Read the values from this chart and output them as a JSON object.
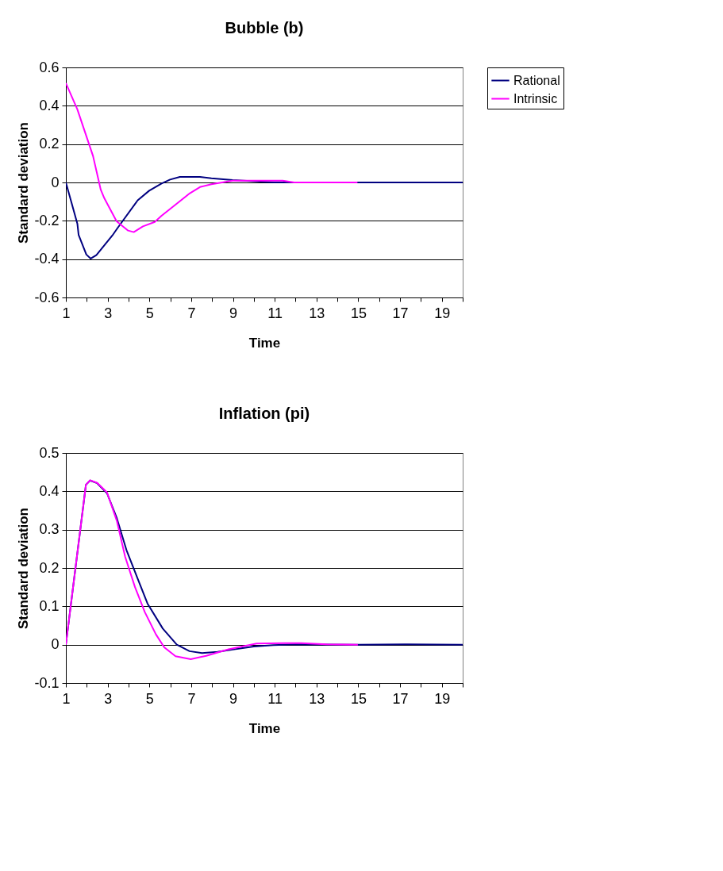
{
  "chart_data": [
    {
      "type": "line",
      "title": "Bubble (b)",
      "xlabel": "Time",
      "ylabel": "Standard deviation",
      "xlim": [
        1,
        20
      ],
      "ylim": [
        -0.6,
        0.6
      ],
      "xticks": [
        1,
        {
          "value": 2,
          "label": null
        },
        3,
        {
          "value": 4,
          "label": null
        },
        5,
        {
          "value": 6,
          "label": null
        },
        7,
        {
          "value": 8,
          "label": null
        },
        9,
        {
          "value": 10,
          "label": null
        },
        11,
        {
          "value": 12,
          "label": null
        },
        13,
        {
          "value": 14,
          "label": null
        },
        15,
        {
          "value": 16,
          "label": null
        },
        17,
        {
          "value": 18,
          "label": null
        },
        19,
        {
          "value": 20,
          "label": null
        }
      ],
      "yticks": [
        -0.6,
        -0.4,
        -0.2,
        0,
        0.2,
        0.4,
        0.6
      ],
      "grid": "y",
      "legend": "right",
      "marker": "none",
      "line_style": "solid",
      "series": [
        {
          "name": "Rational",
          "color": "#000080",
          "x": [
            1,
            1.55,
            1.61,
            1.98,
            2.19,
            2.46,
            3.23,
            3.46,
            4.44,
            4.99,
            5.58,
            5.99,
            6.46,
            7.42,
            7.97,
            8.99,
            10.0,
            10.97,
            20
          ],
          "values": [
            0,
            -0.215,
            -0.274,
            -0.376,
            -0.397,
            -0.379,
            -0.276,
            -0.24,
            -0.093,
            -0.043,
            -0.006,
            0.015,
            0.029,
            0.029,
            0.022,
            0.012,
            0.006,
            0,
            0
          ]
        },
        {
          "name": "Intrinsic",
          "color": "#ff00ff",
          "x": [
            1,
            1.55,
            2.3,
            2.67,
            2.84,
            3.43,
            3.98,
            4.25,
            4.69,
            5.26,
            5.58,
            6.94,
            7.42,
            7.97,
            8.65,
            8.99,
            10.0,
            11.38,
            11.93,
            14.96
          ],
          "values": [
            0.518,
            0.381,
            0.138,
            -0.038,
            -0.082,
            -0.203,
            -0.251,
            -0.259,
            -0.229,
            -0.206,
            -0.174,
            -0.056,
            -0.024,
            -0.009,
            0.003,
            0.009,
            0.009,
            0.009,
            0,
            0
          ]
        }
      ]
    },
    {
      "type": "line",
      "title": "Inflation (pi)",
      "xlabel": "Time",
      "ylabel": "Standard deviation",
      "xlim": [
        1,
        20
      ],
      "ylim": [
        -0.1,
        0.5
      ],
      "xticks": [
        1,
        {
          "value": 2,
          "label": null
        },
        3,
        {
          "value": 4,
          "label": null
        },
        5,
        {
          "value": 6,
          "label": null
        },
        7,
        {
          "value": 8,
          "label": null
        },
        9,
        {
          "value": 10,
          "label": null
        },
        11,
        {
          "value": 12,
          "label": null
        },
        13,
        {
          "value": 14,
          "label": null
        },
        15,
        {
          "value": 16,
          "label": null
        },
        17,
        {
          "value": 18,
          "label": null
        },
        19,
        {
          "value": 20,
          "label": null
        }
      ],
      "yticks": [
        -0.1,
        0,
        0.1,
        0.2,
        0.3,
        0.4,
        0.5
      ],
      "grid": "y",
      "legend": "right",
      "marker": "none",
      "line_style": "solid",
      "series": [
        {
          "name": "Rational",
          "color": "#000080",
          "x": [
            1,
            1.96,
            2.16,
            2.5,
            2.97,
            3.44,
            3.9,
            4.44,
            4.91,
            5.64,
            6.31,
            6.92,
            7.52,
            8.26,
            9.06,
            10.0,
            10.93,
            12.0,
            14.95,
            17.36,
            20
          ],
          "values": [
            0,
            0.417,
            0.428,
            0.421,
            0.395,
            0.33,
            0.247,
            0.172,
            0.107,
            0.042,
            0,
            -0.017,
            -0.022,
            -0.019,
            -0.012,
            -0.005,
            -0.001,
            0.001,
            0,
            0.001,
            0
          ]
        },
        {
          "name": "Intrinsic",
          "color": "#ff00ff",
          "x": [
            1,
            1.96,
            2.16,
            2.5,
            2.97,
            3.44,
            3.84,
            4.31,
            4.78,
            5.31,
            5.71,
            6.25,
            6.98,
            7.72,
            8.79,
            10.13,
            11.47,
            12.27,
            13.48,
            14.98
          ],
          "values": [
            0,
            0.417,
            0.429,
            0.422,
            0.397,
            0.323,
            0.229,
            0.15,
            0.085,
            0.027,
            -0.007,
            -0.03,
            -0.038,
            -0.029,
            -0.012,
            0.003,
            0.004,
            0.004,
            0.001,
            0
          ]
        }
      ]
    }
  ]
}
